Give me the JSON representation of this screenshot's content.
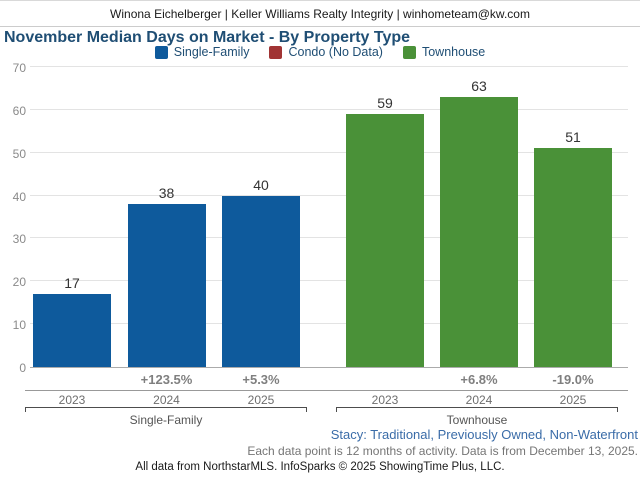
{
  "header": {
    "text": "Winona Eichelberger | Keller Williams Realty Integrity | winhometeam@kw.com"
  },
  "title": "November Median Days on Market - By Property Type",
  "legend": [
    {
      "label": "Single-Family",
      "color": "#0e5a9c"
    },
    {
      "label": "Condo (No Data)",
      "color": "#a13434"
    },
    {
      "label": "Townhouse",
      "color": "#4a9138"
    }
  ],
  "chart_data": {
    "type": "bar",
    "title": "November Median Days on Market - By Property Type",
    "xlabel": "",
    "ylabel": "",
    "ylim": [
      0,
      70
    ],
    "yticks": [
      0,
      10,
      20,
      30,
      40,
      50,
      60,
      70
    ],
    "grid": true,
    "legend_position": "top-center",
    "groups": [
      {
        "name": "Single-Family",
        "color": "#0e5a9c",
        "categories": [
          "2023",
          "2024",
          "2025"
        ],
        "values": [
          17,
          38,
          40
        ],
        "pct_change": [
          "",
          "+123.5%",
          "+5.3%"
        ]
      },
      {
        "name": "Townhouse",
        "color": "#4a9138",
        "categories": [
          "2023",
          "2024",
          "2025"
        ],
        "values": [
          59,
          63,
          51
        ],
        "pct_change": [
          "",
          "+6.8%",
          "-19.0%"
        ]
      }
    ]
  },
  "footer": {
    "filters": "Stacy: Traditional, Previously Owned, Non-Waterfront",
    "note": "Each data point is 12 months of activity. Data is from December 13, 2025.",
    "attribution": "All data from NorthstarMLS. InfoSparks © 2025 ShowingTime Plus, LLC."
  }
}
